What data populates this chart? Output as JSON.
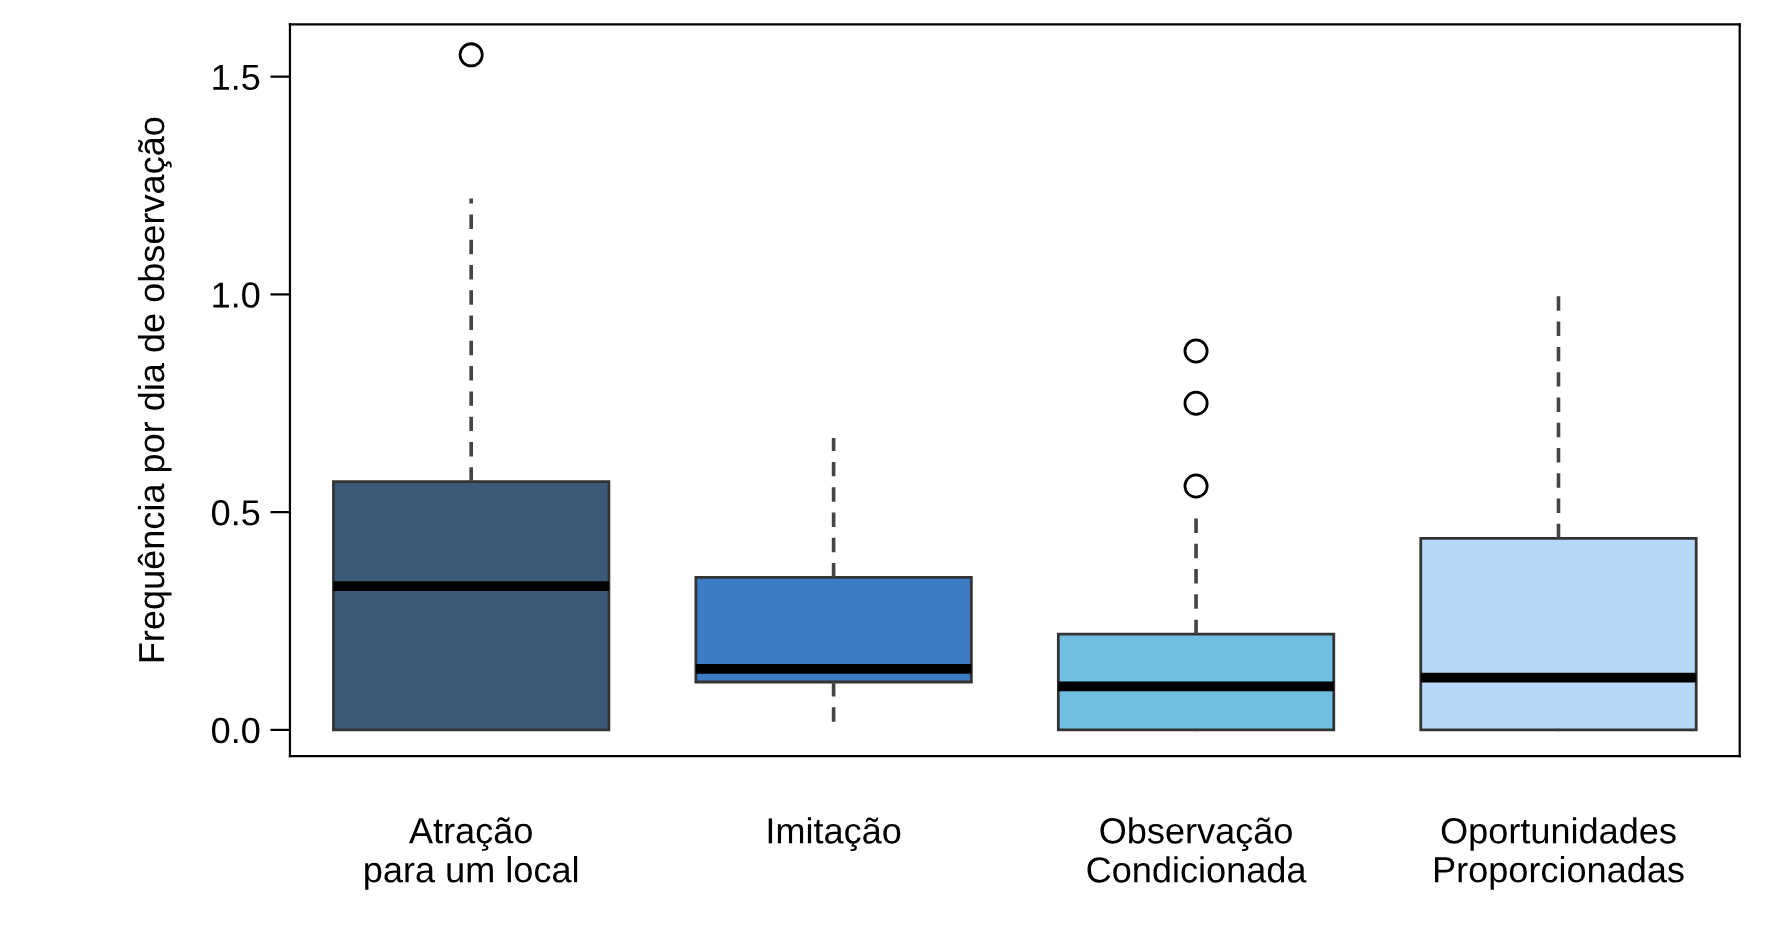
{
  "chart_data": {
    "type": "box",
    "ylabel": "Frequência por dia de observação",
    "categories": [
      "Atração\npara um local",
      "Imitação",
      "Observação\nCondicionada",
      "Oportunidades\nProporcionadas"
    ],
    "colors": [
      "#3a5a78",
      "#3a7dc4",
      "#70bfe0",
      "#b7d8f8"
    ],
    "boxes": [
      {
        "low": 0,
        "q1": 0,
        "median": 0.33,
        "q3": 0.57,
        "high": 1.22,
        "outliers": [
          1.55
        ]
      },
      {
        "low": 0,
        "q1": 0.11,
        "median": 0.14,
        "q3": 0.35,
        "high": 0.67
      },
      {
        "low": 0,
        "q1": 0,
        "median": 0.1,
        "q3": 0.22,
        "high": 0.5,
        "outliers": [
          0.56,
          0.75,
          0.87
        ]
      },
      {
        "low": 0,
        "q1": 0,
        "median": 0.12,
        "q3": 0.44,
        "high": 1.0
      }
    ],
    "ylim": [
      -0.06,
      1.62
    ],
    "yticks": [
      {
        "value": 0,
        "label": "0.0"
      },
      {
        "value": 0.5,
        "label": "0.5"
      },
      {
        "value": 1,
        "label": "1.0"
      },
      {
        "value": 1.5,
        "label": "1.5"
      }
    ],
    "grid": false,
    "legend": false
  }
}
